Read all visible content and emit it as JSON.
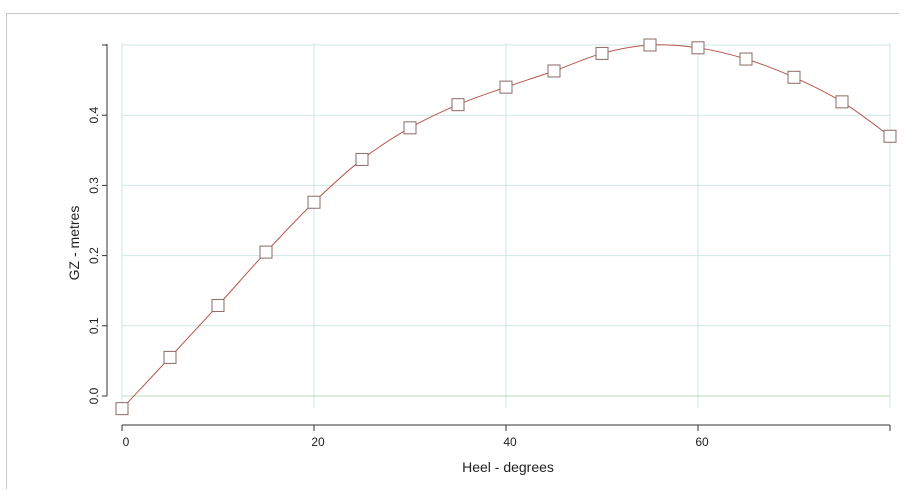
{
  "chart_data": {
    "type": "line",
    "title": "",
    "xlabel": "Heel - degrees",
    "ylabel": "GZ - metres",
    "xlim": [
      0,
      80
    ],
    "ylim": [
      -0.02,
      0.5
    ],
    "x_ticks": [
      "0",
      "20",
      "40",
      "60"
    ],
    "y_ticks": [
      "0.0",
      "0.1",
      "0.2",
      "0.3",
      "0.4"
    ],
    "grid": true,
    "colors": {
      "line": "#b5574b",
      "grid": "#cfe6e6",
      "zero_line": "#b9dcb9",
      "marker_stroke": "#8a6a66"
    },
    "marker": "square",
    "series": [
      {
        "x": [
          0,
          5,
          10,
          15,
          20,
          25,
          30,
          35,
          40,
          45,
          50,
          55,
          60,
          65,
          70,
          75,
          80
        ],
        "y": [
          -0.018,
          0.055,
          0.129,
          0.205,
          0.276,
          0.337,
          0.382,
          0.415,
          0.44,
          0.463,
          0.488,
          0.5,
          0.496,
          0.48,
          0.454,
          0.419,
          0.37
        ]
      }
    ]
  }
}
